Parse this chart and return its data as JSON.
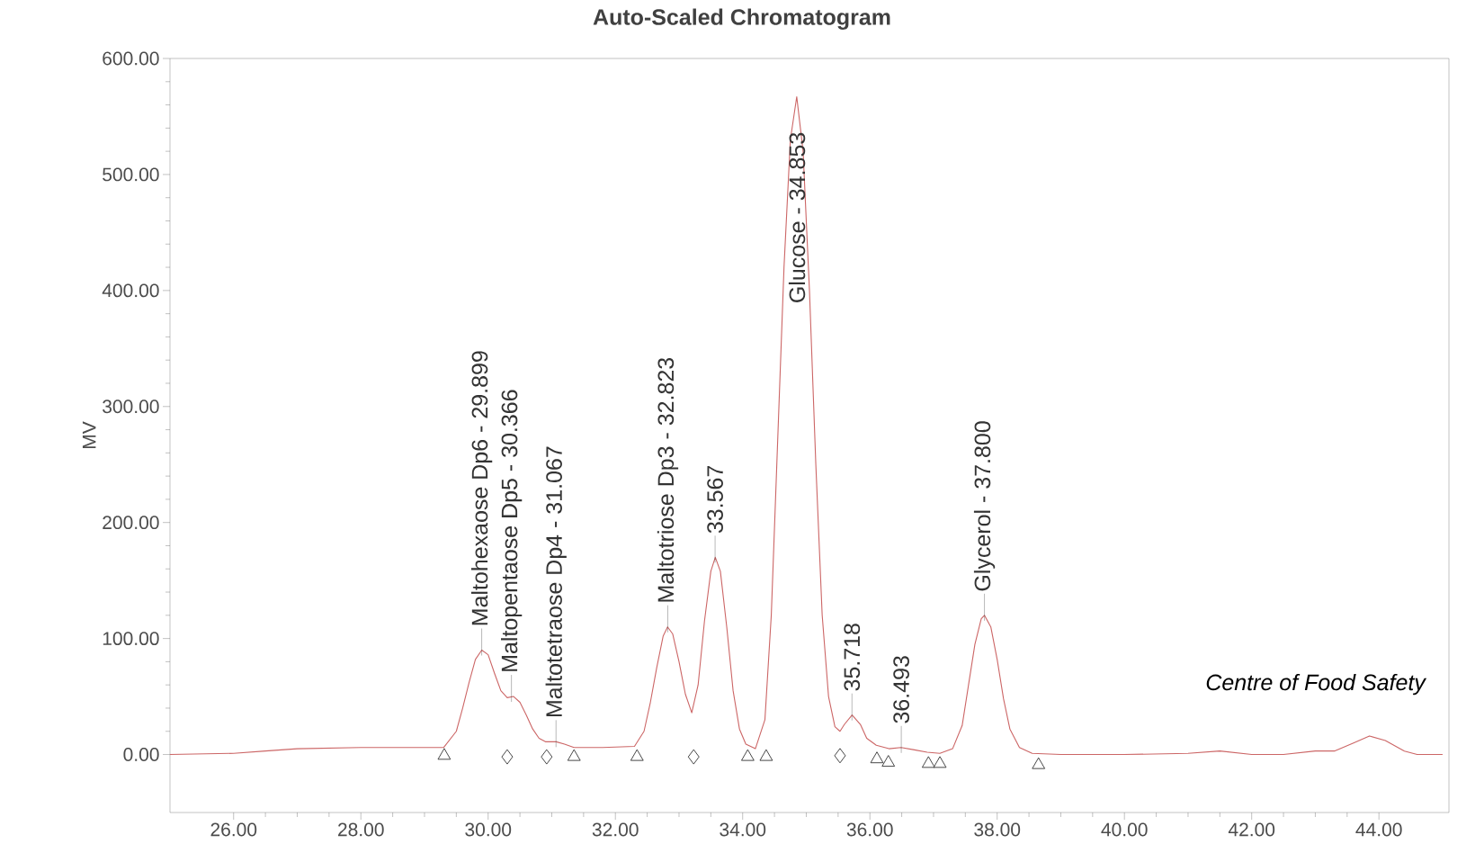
{
  "chart_data": {
    "type": "line",
    "title": "Auto-Scaled Chromatogram",
    "ylabel": "MV",
    "xlim": [
      25,
      45.1
    ],
    "ylim": [
      -50,
      600
    ],
    "xticks": [
      {
        "value": 26,
        "label": "26.00"
      },
      {
        "value": 28,
        "label": "28.00"
      },
      {
        "value": 30,
        "label": "30.00"
      },
      {
        "value": 32,
        "label": "32.00"
      },
      {
        "value": 34,
        "label": "34.00"
      },
      {
        "value": 36,
        "label": "36.00"
      },
      {
        "value": 38,
        "label": "38.00"
      },
      {
        "value": 40,
        "label": "40.00"
      },
      {
        "value": 42,
        "label": "42.00"
      },
      {
        "value": 44,
        "label": "44.00"
      }
    ],
    "yticks": [
      {
        "value": 0,
        "label": "0.00"
      },
      {
        "value": 100,
        "label": "100.00"
      },
      {
        "value": 200,
        "label": "200.00"
      },
      {
        "value": 300,
        "label": "300.00"
      },
      {
        "value": 400,
        "label": "400.00"
      },
      {
        "value": 500,
        "label": "500.00"
      },
      {
        "value": 600,
        "label": "600.00"
      }
    ],
    "series": [
      {
        "color": "#cc6666",
        "marker": "none",
        "line_style": "solid",
        "x": [
          25.0,
          26.0,
          26.5,
          27.0,
          28.0,
          29.0,
          29.3,
          29.5,
          29.6,
          29.7,
          29.8,
          29.9,
          30.0,
          30.1,
          30.2,
          30.3,
          30.4,
          30.5,
          30.6,
          30.7,
          30.8,
          30.9,
          31.07,
          31.2,
          31.35,
          31.8,
          32.3,
          32.45,
          32.55,
          32.65,
          32.75,
          32.82,
          32.9,
          33.0,
          33.1,
          33.2,
          33.3,
          33.4,
          33.5,
          33.57,
          33.65,
          33.75,
          33.85,
          33.95,
          34.05,
          34.2,
          34.35,
          34.45,
          34.55,
          34.65,
          34.75,
          34.85,
          34.95,
          35.05,
          35.15,
          35.25,
          35.35,
          35.45,
          35.53,
          35.6,
          35.72,
          35.85,
          35.95,
          36.1,
          36.3,
          36.49,
          36.7,
          36.9,
          37.1,
          37.3,
          37.45,
          37.55,
          37.65,
          37.75,
          37.8,
          37.9,
          38.0,
          38.1,
          38.2,
          38.35,
          38.55,
          39.0,
          40.0,
          41.0,
          41.5,
          42.0,
          42.5,
          43.0,
          43.3,
          43.6,
          43.85,
          44.1,
          44.4,
          44.6,
          45.0
        ],
        "values": [
          0,
          1,
          3,
          5,
          6,
          6,
          6,
          20,
          40,
          62,
          82,
          90,
          86,
          70,
          55,
          49,
          50,
          45,
          34,
          22,
          14,
          11,
          11,
          9,
          6,
          6,
          7,
          20,
          45,
          75,
          102,
          110,
          104,
          80,
          52,
          36,
          60,
          115,
          158,
          170,
          158,
          110,
          55,
          22,
          9,
          5,
          30,
          120,
          270,
          420,
          530,
          567,
          520,
          400,
          250,
          120,
          50,
          24,
          20,
          26,
          34,
          26,
          14,
          8,
          5,
          6,
          4,
          2,
          1,
          5,
          25,
          60,
          95,
          117,
          120,
          110,
          82,
          48,
          22,
          6,
          1,
          0,
          0,
          1,
          3,
          0,
          0,
          3,
          3,
          10,
          16,
          12,
          3,
          0,
          0
        ]
      },
      {
        "type": "scatter",
        "color": "#333333",
        "marker": "triangle",
        "x": [
          29.31,
          31.35,
          32.34,
          34.08,
          34.37,
          36.11,
          36.29,
          36.92,
          37.1,
          38.65
        ],
        "values": [
          -1,
          -2,
          -2,
          -2,
          -2,
          -4,
          -7,
          -8,
          -8,
          -9
        ]
      },
      {
        "type": "scatter",
        "color": "#333333",
        "marker": "diamond",
        "x": [
          30.3,
          30.92,
          33.23,
          35.53
        ],
        "values": [
          -2,
          -2,
          -2,
          -1
        ]
      }
    ],
    "annotations": [
      {
        "text": "Maltohexaose Dp6 - 29.899",
        "x": 29.899,
        "y": 90
      },
      {
        "text": "Maltopentaose Dp5 - 30.366",
        "x": 30.366,
        "y": 50
      },
      {
        "text": "Maltotetraose Dp4 - 31.067",
        "x": 31.067,
        "y": 11
      },
      {
        "text": "Maltotriose Dp3 - 32.823",
        "x": 32.823,
        "y": 110
      },
      {
        "text": "33.567",
        "x": 33.567,
        "y": 170
      },
      {
        "text": "Glucose - 34.853",
        "x": 34.853,
        "y": 567
      },
      {
        "text": "35.718",
        "x": 35.718,
        "y": 34
      },
      {
        "text": "36.493",
        "x": 36.493,
        "y": 6
      },
      {
        "text": "Glycerol - 37.800",
        "x": 37.8,
        "y": 120
      },
      "*Centre of Food Safety*"
    ]
  }
}
